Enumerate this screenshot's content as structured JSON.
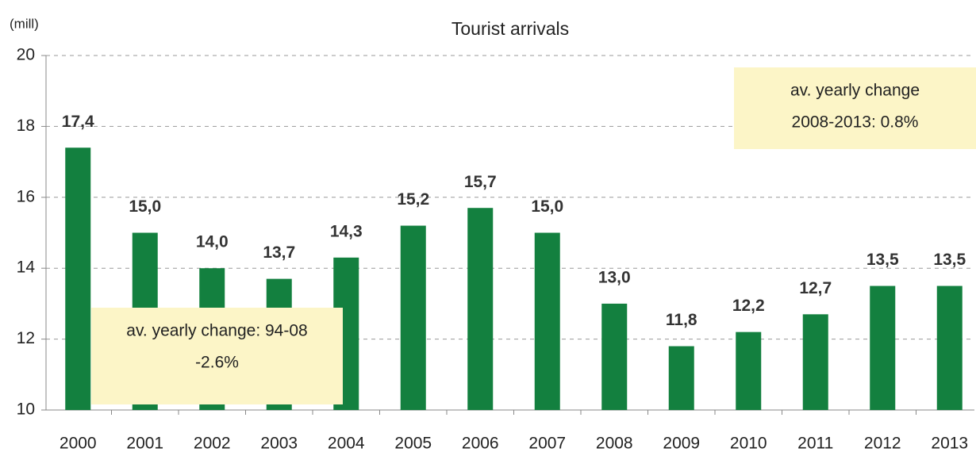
{
  "chart_data": {
    "type": "bar",
    "title": "Tourist arrivals",
    "y_unit": "(mill)",
    "categories": [
      "2000",
      "2001",
      "2002",
      "2003",
      "2004",
      "2005",
      "2006",
      "2007",
      "2008",
      "2009",
      "2010",
      "2011",
      "2012",
      "2013"
    ],
    "values": [
      17.4,
      15.0,
      14.0,
      13.7,
      14.3,
      15.2,
      15.7,
      15.0,
      13.0,
      11.8,
      12.2,
      12.7,
      13.5,
      13.5
    ],
    "value_labels": [
      "17,4",
      "15,0",
      "14,0",
      "13,7",
      "14,3",
      "15,2",
      "15,7",
      "15,0",
      "13,0",
      "11,8",
      "12,2",
      "12,7",
      "13,5",
      "13,5"
    ],
    "color": "#13803f",
    "ylim": [
      10,
      20
    ],
    "yticks": [
      10,
      12,
      14,
      16,
      18,
      20
    ],
    "grid": true,
    "annotations": [
      {
        "lines": [
          "av. yearly change: 94-08",
          "-2.6%"
        ]
      },
      {
        "lines": [
          "av. yearly change",
          "2008-2013: 0.8%"
        ]
      }
    ]
  }
}
